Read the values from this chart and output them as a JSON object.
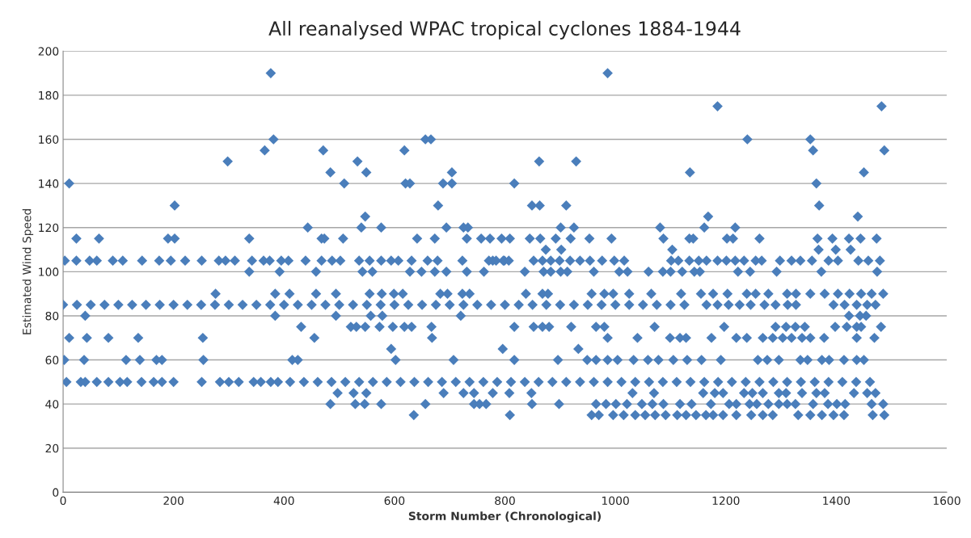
{
  "chart_data": {
    "type": "scatter",
    "title": "All reanalysed WPAC tropical cyclones 1884-1944",
    "xlabel": "Storm Number (Chronological)",
    "ylabel": "Estimated Wind Speed",
    "xlim": [
      0,
      1600
    ],
    "xticks": [
      0,
      200,
      400,
      600,
      800,
      1000,
      1200,
      1400,
      1600
    ],
    "ylim": [
      0,
      200
    ],
    "yticks": [
      0,
      20,
      40,
      60,
      80,
      100,
      120,
      140,
      160,
      180,
      200
    ],
    "grid": "y",
    "marker": "diamond",
    "series": [
      {
        "color": "#4a7ebb",
        "x": [
          376,
          986
        ],
        "values": [
          190,
          190
        ]
      },
      {
        "color": "#4a7ebb",
        "x": [
          1185,
          1482
        ],
        "values": [
          175,
          175
        ]
      },
      {
        "color": "#4a7ebb",
        "x": [
          381,
          656,
          666,
          1239,
          1353
        ],
        "values": [
          160,
          160,
          160,
          160,
          160
        ]
      },
      {
        "color": "#4a7ebb",
        "x": [
          365,
          471,
          618,
          1358,
          1487
        ],
        "values": [
          155,
          155,
          155,
          155,
          155
        ]
      },
      {
        "color": "#4a7ebb",
        "x": [
          298,
          533,
          862,
          929
        ],
        "values": [
          150,
          150,
          150,
          150
        ]
      },
      {
        "color": "#4a7ebb",
        "x": [
          484,
          549,
          704,
          1135,
          1450
        ],
        "values": [
          145,
          145,
          145,
          145,
          145
        ]
      },
      {
        "color": "#4a7ebb",
        "x": [
          11,
          509,
          620,
          628,
          688,
          704,
          817,
          1364
        ],
        "values": [
          140,
          140,
          140,
          140,
          140,
          140,
          140,
          140
        ]
      },
      {
        "color": "#4a7ebb",
        "x": [
          202,
          679,
          849,
          863,
          911,
          1369
        ],
        "values": [
          130,
          130,
          130,
          130,
          130,
          130
        ]
      },
      {
        "color": "#4a7ebb",
        "x": [
          547,
          1168,
          1439
        ],
        "values": [
          125,
          125,
          125
        ]
      },
      {
        "color": "#4a7ebb",
        "x": [
          443,
          540,
          576,
          694,
          725,
          733,
          901,
          925,
          1081,
          1161,
          1217
        ],
        "values": [
          120,
          120,
          120,
          120,
          120,
          120,
          120,
          120,
          120,
          120,
          120
        ]
      },
      {
        "color": "#4a7ebb",
        "x": [
          24,
          65,
          190,
          202,
          337,
          468,
          473,
          507,
          641,
          673,
          731,
          757,
          773,
          794,
          809,
          845,
          864,
          892,
          919,
          953,
          993,
          1087,
          1134,
          1141,
          1202,
          1213,
          1261,
          1366,
          1393,
          1423,
          1444,
          1473
        ],
        "values": [
          115,
          115,
          115,
          115,
          115,
          115,
          115,
          115,
          115,
          115,
          115,
          115,
          115,
          115,
          115,
          115,
          115,
          115,
          115,
          115,
          115,
          115,
          115,
          115,
          115,
          115,
          115,
          115,
          115,
          115,
          115,
          115
        ]
      },
      {
        "color": "#4a7ebb",
        "x": [
          874,
          902,
          1103,
          1368,
          1399,
          1426
        ],
        "values": [
          110,
          110,
          110,
          110,
          110,
          110
        ]
      },
      {
        "color": "#4a7ebb",
        "x": [
          3,
          24,
          48,
          61,
          90,
          108,
          143,
          174,
          195,
          221,
          251,
          282,
          294,
          311,
          342,
          363,
          374,
          395,
          408,
          439,
          468,
          487,
          502,
          536,
          555,
          576,
          594,
          607,
          631,
          660,
          678,
          723,
          778,
          799,
          771,
          784,
          797,
          807,
          852,
          868,
          883,
          899,
          918,
          936,
          954,
          976,
          998,
          1016,
          1101,
          1114,
          1134,
          1151,
          1165,
          1185,
          1201,
          1217,
          1233,
          1254,
          1265,
          1298,
          1319,
          1335,
          1356,
          1386,
          1403,
          1440,
          1458,
          1479
        ],
        "values": [
          105,
          105,
          105,
          105,
          105,
          105,
          105,
          105,
          105,
          105,
          105,
          105,
          105,
          105,
          105,
          105,
          105,
          105,
          105,
          105,
          105,
          105,
          105,
          105,
          105,
          105,
          105,
          105,
          105,
          105,
          105,
          105,
          105,
          105,
          105,
          105,
          105,
          105,
          105,
          105,
          105,
          105,
          105,
          105,
          105,
          105,
          105,
          105,
          105,
          105,
          105,
          105,
          105,
          105,
          105,
          105,
          105,
          105,
          105,
          105,
          105,
          105,
          105,
          105,
          105,
          105,
          105,
          105
        ]
      },
      {
        "color": "#4a7ebb",
        "x": [
          337,
          392,
          458,
          542,
          560,
          628,
          649,
          673,
          694,
          731,
          762,
          836,
          870,
          883,
          901,
          913,
          961,
          1007,
          1022,
          1060,
          1086,
          1100,
          1121,
          1143,
          1153,
          1222,
          1244,
          1292,
          1373,
          1474
        ],
        "values": [
          100,
          100,
          100,
          100,
          100,
          100,
          100,
          100,
          100,
          100,
          100,
          100,
          100,
          100,
          100,
          100,
          100,
          100,
          100,
          100,
          100,
          100,
          100,
          100,
          100,
          100,
          100,
          100,
          100,
          100
        ]
      },
      {
        "color": "#4a7ebb",
        "x": [
          276,
          384,
          410,
          458,
          494,
          555,
          577,
          599,
          615,
          683,
          696,
          723,
          736,
          838,
          868,
          878,
          957,
          980,
          996,
          1025,
          1065,
          1119,
          1155,
          1177,
          1203,
          1238,
          1254,
          1277,
          1311,
          1327,
          1353,
          1379,
          1403,
          1424,
          1445,
          1464,
          1485
        ],
        "values": [
          90,
          90,
          90,
          90,
          90,
          90,
          90,
          90,
          90,
          90,
          90,
          90,
          90,
          90,
          90,
          90,
          90,
          90,
          90,
          90,
          90,
          90,
          90,
          90,
          90,
          90,
          90,
          90,
          90,
          90,
          90,
          90,
          90,
          90,
          90,
          90,
          90
        ]
      },
      {
        "color": "#4a7ebb",
        "x": [
          0,
          25,
          50,
          75,
          100,
          125,
          150,
          175,
          200,
          225,
          250,
          275,
          300,
          325,
          350,
          375,
          400,
          425,
          450,
          475,
          500,
          525,
          550,
          575,
          600,
          625,
          650,
          675,
          700,
          725,
          750,
          775,
          800,
          825,
          850,
          875,
          900,
          925,
          950,
          975,
          1000,
          1025,
          1050,
          1075,
          1100,
          1125,
          1165,
          1185,
          1205,
          1225,
          1245,
          1270,
          1290,
          1312,
          1327,
          1395,
          1415,
          1437,
          1456,
          1471
        ],
        "values": [
          85,
          85,
          85,
          85,
          85,
          85,
          85,
          85,
          85,
          85,
          85,
          85,
          85,
          85,
          85,
          85,
          85,
          85,
          85,
          85,
          85,
          85,
          85,
          85,
          85,
          85,
          85,
          85,
          85,
          85,
          85,
          85,
          85,
          85,
          85,
          85,
          85,
          85,
          85,
          85,
          85,
          85,
          85,
          85,
          85,
          85,
          85,
          85,
          85,
          85,
          85,
          85,
          85,
          85,
          85,
          85,
          85,
          85,
          85,
          85
        ]
      },
      {
        "color": "#4a7ebb",
        "x": [
          40,
          384,
          494,
          557,
          578,
          720,
          1423,
          1443,
          1454
        ],
        "values": [
          80,
          80,
          80,
          80,
          80,
          80,
          80,
          80,
          80
        ]
      },
      {
        "color": "#4a7ebb",
        "x": [
          431,
          521,
          531,
          547,
          573,
          597,
          618,
          631,
          667,
          817,
          852,
          868,
          880,
          920,
          965,
          980,
          1071,
          1197,
          1290,
          1309,
          1326,
          1343,
          1398,
          1419,
          1437,
          1445,
          1481
        ],
        "values": [
          75,
          75,
          75,
          75,
          75,
          75,
          75,
          75,
          75,
          75,
          75,
          75,
          75,
          75,
          75,
          75,
          75,
          75,
          75,
          75,
          75,
          75,
          75,
          75,
          75,
          75,
          75
        ]
      },
      {
        "color": "#4a7ebb",
        "x": [
          11,
          43,
          82,
          136,
          253,
          455,
          668,
          986,
          1040,
          1099,
          1117,
          1128,
          1174,
          1219,
          1238,
          1267,
          1285,
          1303,
          1319,
          1338,
          1353,
          1378,
          1437,
          1469
        ],
        "values": [
          70,
          70,
          70,
          70,
          70,
          70,
          70,
          70,
          70,
          70,
          70,
          70,
          70,
          70,
          70,
          70,
          70,
          70,
          70,
          70,
          70,
          70,
          70,
          70
        ]
      },
      {
        "color": "#4a7ebb",
        "x": [
          594,
          796,
          933
        ],
        "values": [
          65,
          65,
          65
        ]
      },
      {
        "color": "#4a7ebb",
        "x": [
          2,
          38,
          114,
          139,
          169,
          179,
          254,
          415,
          425,
          602,
          707,
          817,
          896,
          949,
          965,
          986,
          1004,
          1033,
          1059,
          1078,
          1105,
          1130,
          1156,
          1191,
          1258,
          1275,
          1296,
          1335,
          1348,
          1374,
          1387,
          1414,
          1437,
          1450
        ],
        "values": [
          60,
          60,
          60,
          60,
          60,
          60,
          60,
          60,
          60,
          60,
          60,
          60,
          60,
          60,
          60,
          60,
          60,
          60,
          60,
          60,
          60,
          60,
          60,
          60,
          60,
          60,
          60,
          60,
          60,
          60,
          60,
          60,
          60,
          60
        ]
      },
      {
        "color": "#4a7ebb",
        "x": [
          6,
          32,
          40,
          61,
          82,
          103,
          116,
          142,
          164,
          179,
          200,
          251,
          284,
          300,
          318,
          345,
          358,
          376,
          389,
          411,
          436,
          461,
          486,
          511,
          536,
          561,
          586,
          611,
          636,
          661,
          686,
          711,
          736,
          761,
          786,
          811,
          836,
          861,
          886,
          911,
          936,
          961,
          986,
          1011,
          1036,
          1061,
          1086,
          1111,
          1136,
          1161,
          1186,
          1211,
          1236,
          1261,
          1286,
          1311,
          1336,
          1361,
          1386,
          1411,
          1436,
          1461
        ],
        "values": [
          50,
          50,
          50,
          50,
          50,
          50,
          50,
          50,
          50,
          50,
          50,
          50,
          50,
          50,
          50,
          50,
          50,
          50,
          50,
          50,
          50,
          50,
          50,
          50,
          50,
          50,
          50,
          50,
          50,
          50,
          50,
          50,
          50,
          50,
          50,
          50,
          50,
          50,
          50,
          50,
          50,
          50,
          50,
          50,
          50,
          50,
          50,
          50,
          50,
          50,
          50,
          50,
          50,
          50,
          50,
          50,
          50,
          50,
          50,
          50,
          50,
          50
        ]
      },
      {
        "color": "#4a7ebb",
        "x": [
          497,
          526,
          549,
          689,
          725,
          744,
          778,
          808,
          848,
          1031,
          1070,
          1159,
          1180,
          1195,
          1233,
          1248,
          1267,
          1296,
          1309,
          1338,
          1364,
          1379,
          1432,
          1456,
          1471
        ],
        "values": [
          45,
          45,
          45,
          45,
          45,
          45,
          45,
          45,
          45,
          45,
          45,
          45,
          45,
          45,
          45,
          45,
          45,
          45,
          45,
          45,
          45,
          45,
          45,
          45,
          45
        ]
      },
      {
        "color": "#4a7ebb",
        "x": [
          484,
          529,
          546,
          576,
          656,
          744,
          754,
          766,
          849,
          898,
          965,
          983,
          1001,
          1021,
          1048,
          1067,
          1087,
          1117,
          1138,
          1173,
          1206,
          1219,
          1243,
          1256,
          1277,
          1296,
          1311,
          1326,
          1358,
          1385,
          1401,
          1416,
          1464,
          1485
        ],
        "values": [
          40,
          40,
          40,
          40,
          40,
          40,
          40,
          40,
          40,
          40,
          40,
          40,
          40,
          40,
          40,
          40,
          40,
          40,
          40,
          40,
          40,
          40,
          40,
          40,
          40,
          40,
          40,
          40,
          40,
          40,
          40,
          40,
          40,
          40
        ]
      },
      {
        "color": "#4a7ebb",
        "x": [
          635,
          809,
          957,
          970,
          996,
          1015,
          1036,
          1054,
          1072,
          1091,
          1112,
          1128,
          1146,
          1164,
          1177,
          1195,
          1219,
          1246,
          1267,
          1285,
          1331,
          1353,
          1374,
          1395,
          1414,
          1466,
          1487
        ],
        "values": [
          35,
          35,
          35,
          35,
          35,
          35,
          35,
          35,
          35,
          35,
          35,
          35,
          35,
          35,
          35,
          35,
          35,
          35,
          35,
          35,
          35,
          35,
          35,
          35,
          35,
          35,
          35
        ]
      }
    ]
  }
}
